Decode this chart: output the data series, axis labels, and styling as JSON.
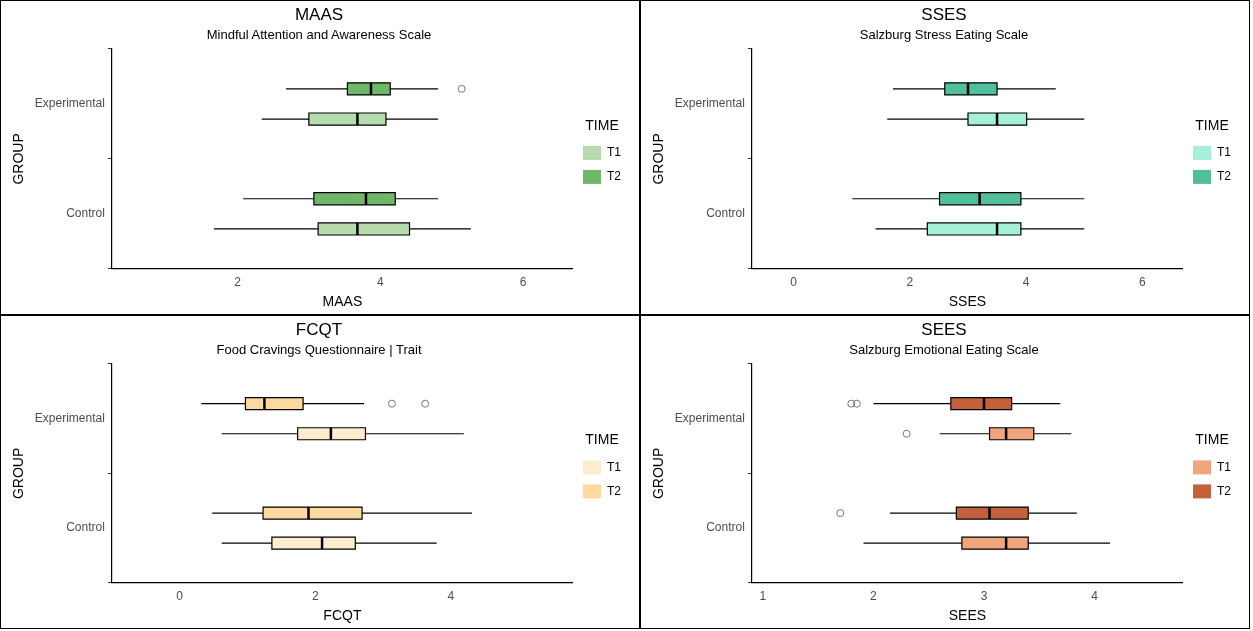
{
  "chart_data": [
    {
      "type": "box",
      "title": "MAAS",
      "subtitle": "Mindful Attention and Awareness Scale",
      "xlabel": "MAAS",
      "ylabel": "GROUP",
      "legend_title": "TIME",
      "legend": "right",
      "grid": false,
      "orientation": "horizontal",
      "categories": [
        "Experimental",
        "Control"
      ],
      "xlim": [
        0.24,
        6.7
      ],
      "xticks": [
        2,
        4,
        6
      ],
      "series": [
        {
          "name": "T1",
          "color": "#b5dbae",
          "boxes": [
            {
              "low": 2.34,
              "q1": 3.0,
              "median": 3.68,
              "q3": 4.08,
              "high": 4.81
            },
            {
              "low": 1.67,
              "q1": 3.13,
              "median": 3.68,
              "q3": 4.41,
              "high": 5.27
            }
          ]
        },
        {
          "name": "T2",
          "color": "#6fb86a",
          "boxes": [
            {
              "low": 2.68,
              "q1": 3.54,
              "median": 3.87,
              "q3": 4.14,
              "high": 4.81,
              "outliers": [
                5.14
              ]
            },
            {
              "low": 2.08,
              "q1": 3.07,
              "median": 3.8,
              "q3": 4.21,
              "high": 4.81
            }
          ]
        }
      ]
    },
    {
      "type": "box",
      "title": "SSES",
      "subtitle": "Salzburg Stress Eating Scale",
      "xlabel": "SSES",
      "ylabel": "GROUP",
      "legend_title": "TIME",
      "legend": "right",
      "grid": false,
      "orientation": "horizontal",
      "categories": [
        "Experimental",
        "Control"
      ],
      "xlim": [
        -0.72,
        6.7
      ],
      "xticks": [
        0,
        2,
        4,
        6
      ],
      "series": [
        {
          "name": "T1",
          "color": "#a6f0da",
          "boxes": [
            {
              "low": 1.61,
              "q1": 3.0,
              "median": 3.5,
              "q3": 4.01,
              "high": 5.0
            },
            {
              "low": 1.41,
              "q1": 2.3,
              "median": 3.5,
              "q3": 3.91,
              "high": 5.0
            }
          ]
        },
        {
          "name": "T2",
          "color": "#52bf9c",
          "boxes": [
            {
              "low": 1.71,
              "q1": 2.6,
              "median": 3.0,
              "q3": 3.5,
              "high": 4.51
            },
            {
              "low": 1.01,
              "q1": 2.51,
              "median": 3.2,
              "q3": 3.91,
              "high": 5.0
            }
          ]
        }
      ]
    },
    {
      "type": "box",
      "title": "FCQT",
      "subtitle": "Food Cravings Questionnaire | Trait",
      "xlabel": "FCQT",
      "ylabel": "GROUP",
      "legend_title": "TIME",
      "legend": "right",
      "grid": false,
      "orientation": "horizontal",
      "categories": [
        "Experimental",
        "Control"
      ],
      "xlim": [
        -1.0,
        5.8
      ],
      "xticks": [
        0,
        2,
        4
      ],
      "series": [
        {
          "name": "T1",
          "color": "#fdedcf",
          "boxes": [
            {
              "low": 0.62,
              "q1": 1.74,
              "median": 2.23,
              "q3": 2.74,
              "high": 4.19
            },
            {
              "low": 0.62,
              "q1": 1.36,
              "median": 2.1,
              "q3": 2.59,
              "high": 3.79
            }
          ]
        },
        {
          "name": "T2",
          "color": "#fcd99e",
          "boxes": [
            {
              "low": 0.32,
              "q1": 0.97,
              "median": 1.25,
              "q3": 1.82,
              "high": 2.72,
              "outliers": [
                3.13,
                3.62
              ]
            },
            {
              "low": 0.48,
              "q1": 1.23,
              "median": 1.9,
              "q3": 2.69,
              "high": 4.31
            }
          ]
        }
      ]
    },
    {
      "type": "box",
      "title": "SEES",
      "subtitle": "Salzburg Emotional Eating Scale",
      "xlabel": "SEES",
      "ylabel": "GROUP",
      "legend_title": "TIME",
      "legend": "right",
      "grid": false,
      "orientation": "horizontal",
      "categories": [
        "Experimental",
        "Control"
      ],
      "xlim": [
        0.9,
        4.8
      ],
      "xticks": [
        1,
        2,
        3,
        4
      ],
      "series": [
        {
          "name": "T1",
          "color": "#f0a57c",
          "boxes": [
            {
              "low": 2.6,
              "q1": 3.05,
              "median": 3.2,
              "q3": 3.45,
              "high": 3.79,
              "outliers": [
                2.3
              ]
            },
            {
              "low": 1.91,
              "q1": 2.8,
              "median": 3.2,
              "q3": 3.4,
              "high": 4.14
            }
          ]
        },
        {
          "name": "T2",
          "color": "#c4603a",
          "boxes": [
            {
              "low": 2.0,
              "q1": 2.7,
              "median": 3.0,
              "q3": 3.25,
              "high": 3.69,
              "outliers": [
                1.8,
                1.85
              ]
            },
            {
              "low": 2.15,
              "q1": 2.75,
              "median": 3.05,
              "q3": 3.4,
              "high": 3.84,
              "outliers": [
                1.7
              ]
            }
          ]
        }
      ]
    }
  ]
}
